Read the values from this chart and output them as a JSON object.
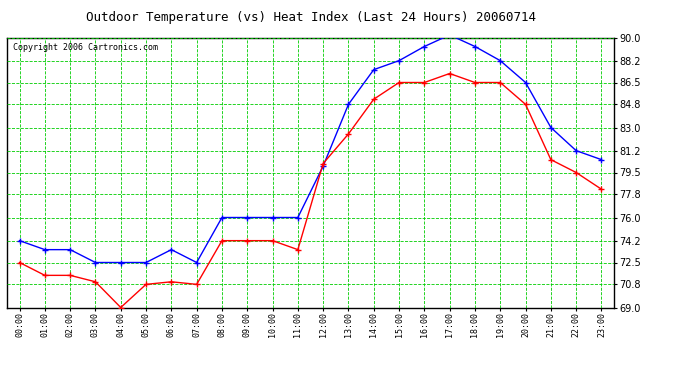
{
  "title": "Outdoor Temperature (vs) Heat Index (Last 24 Hours) 20060714",
  "copyright": "Copyright 2006 Cartronics.com",
  "hours": [
    "00:00",
    "01:00",
    "02:00",
    "03:00",
    "04:00",
    "05:00",
    "06:00",
    "07:00",
    "08:00",
    "09:00",
    "10:00",
    "11:00",
    "12:00",
    "13:00",
    "14:00",
    "15:00",
    "16:00",
    "17:00",
    "18:00",
    "19:00",
    "20:00",
    "21:00",
    "22:00",
    "23:00"
  ],
  "blue_temp": [
    74.2,
    73.5,
    73.5,
    72.5,
    72.5,
    72.5,
    73.5,
    72.5,
    76.0,
    76.0,
    76.0,
    76.0,
    80.0,
    84.8,
    87.5,
    88.2,
    89.3,
    90.2,
    89.3,
    88.2,
    86.5,
    83.0,
    81.2,
    80.5
  ],
  "red_heat": [
    72.5,
    71.5,
    71.5,
    71.0,
    69.0,
    70.8,
    71.0,
    70.8,
    74.2,
    74.2,
    74.2,
    73.5,
    80.2,
    82.5,
    85.2,
    86.5,
    86.5,
    87.2,
    86.5,
    86.5,
    84.8,
    80.5,
    79.5,
    78.2
  ],
  "ylim_min": 69.0,
  "ylim_max": 90.0,
  "yticks": [
    69.0,
    70.8,
    72.5,
    74.2,
    76.0,
    77.8,
    79.5,
    81.2,
    83.0,
    84.8,
    86.5,
    88.2,
    90.0
  ],
  "blue_color": "#0000ff",
  "red_color": "#ff0000",
  "green_grid_color": "#00cc00",
  "bg_color": "#ffffff",
  "title_fontsize": 9,
  "copyright_fontsize": 6
}
